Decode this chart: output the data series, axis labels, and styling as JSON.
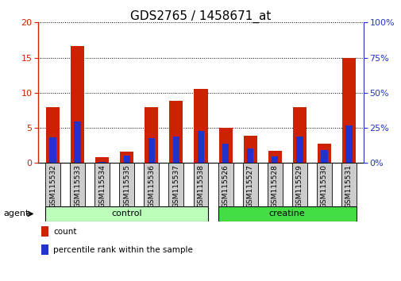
{
  "title": "GDS2765 / 1458671_at",
  "categories": [
    "GSM115532",
    "GSM115533",
    "GSM115534",
    "GSM115535",
    "GSM115536",
    "GSM115537",
    "GSM115538",
    "GSM115526",
    "GSM115527",
    "GSM115528",
    "GSM115529",
    "GSM115530",
    "GSM115531"
  ],
  "count_values": [
    7.9,
    16.6,
    0.8,
    1.6,
    7.9,
    8.9,
    10.6,
    5.0,
    3.9,
    1.7,
    7.9,
    2.8,
    14.9
  ],
  "percentile_values": [
    18.0,
    29.5,
    1.0,
    5.0,
    17.5,
    19.0,
    22.5,
    14.0,
    10.5,
    4.5,
    19.0,
    9.5,
    27.0
  ],
  "groups": [
    {
      "label": "control",
      "indices": [
        0,
        1,
        2,
        3,
        4,
        5,
        6
      ],
      "color": "#bbffbb"
    },
    {
      "label": "creatine",
      "indices": [
        7,
        8,
        9,
        10,
        11,
        12
      ],
      "color": "#44dd44"
    }
  ],
  "group_label": "agent",
  "bar_color_count": "#cc2200",
  "bar_color_pct": "#2233cc",
  "ylim_left": [
    0,
    20
  ],
  "ylim_right": [
    0,
    100
  ],
  "yticks_left": [
    0,
    5,
    10,
    15,
    20
  ],
  "yticks_right": [
    0,
    25,
    50,
    75,
    100
  ],
  "bar_width": 0.55,
  "pct_bar_width": 0.28,
  "legend_items": [
    {
      "label": "count",
      "color": "#cc2200"
    },
    {
      "label": "percentile rank within the sample",
      "color": "#2233cc"
    }
  ],
  "tick_label_bg": "#cccccc",
  "title_fontsize": 11,
  "tick_fontsize": 8,
  "label_fontsize": 6.5
}
